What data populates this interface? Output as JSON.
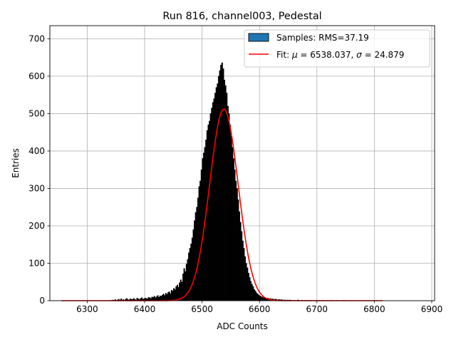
{
  "chart_data": {
    "type": "bar",
    "title": "Run 816, channel003, Pedestal",
    "xlabel": "ADC Counts",
    "ylabel": "Entries",
    "xlim": [
      6235,
      6905
    ],
    "ylim": [
      0,
      735
    ],
    "xticks": [
      6300,
      6400,
      6500,
      6600,
      6700,
      6800,
      6900
    ],
    "yticks": [
      0,
      100,
      200,
      300,
      400,
      500,
      600,
      700
    ],
    "grid": true,
    "legend_position": "upper right",
    "histogram": {
      "name": "Samples: RMS=37.19",
      "face_color": "#000000",
      "legend_patch_color": "#1f77b4",
      "bin_width": 2,
      "bin_starts": [
        6340,
        6342,
        6344,
        6346,
        6348,
        6350,
        6352,
        6354,
        6356,
        6358,
        6360,
        6362,
        6364,
        6366,
        6368,
        6370,
        6372,
        6374,
        6376,
        6378,
        6380,
        6382,
        6384,
        6386,
        6388,
        6390,
        6392,
        6394,
        6396,
        6398,
        6400,
        6402,
        6404,
        6406,
        6408,
        6410,
        6412,
        6414,
        6416,
        6418,
        6420,
        6422,
        6424,
        6426,
        6428,
        6430,
        6432,
        6434,
        6436,
        6438,
        6440,
        6442,
        6444,
        6446,
        6448,
        6450,
        6452,
        6454,
        6456,
        6458,
        6460,
        6462,
        6464,
        6466,
        6468,
        6470,
        6472,
        6474,
        6476,
        6478,
        6480,
        6482,
        6484,
        6486,
        6488,
        6490,
        6492,
        6494,
        6496,
        6498,
        6500,
        6502,
        6504,
        6506,
        6508,
        6510,
        6512,
        6514,
        6516,
        6518,
        6520,
        6522,
        6524,
        6526,
        6528,
        6530,
        6532,
        6534,
        6536,
        6538,
        6540,
        6542,
        6544,
        6546,
        6548,
        6550,
        6552,
        6554,
        6556,
        6558,
        6560,
        6562,
        6564,
        6566,
        6568,
        6570,
        6572,
        6574,
        6576,
        6578,
        6580,
        6582,
        6584,
        6586,
        6588,
        6590,
        6592,
        6594,
        6596,
        6598,
        6600,
        6602,
        6604,
        6606,
        6608,
        6610,
        6612,
        6614,
        6616,
        6618,
        6620,
        6622,
        6624,
        6626,
        6628,
        6630,
        6632,
        6634,
        6636,
        6638,
        6640,
        6642,
        6644,
        6646,
        6648,
        6650,
        6652,
        6654,
        6656,
        6658,
        6660,
        6662,
        6664,
        6666,
        6668,
        6670,
        6672,
        6674,
        6676,
        6678,
        6680,
        6682,
        6684,
        6686,
        6688,
        6690,
        6692,
        6694,
        6696,
        6698,
        6700,
        6702,
        6704,
        6706,
        6708,
        6710,
        6712,
        6714,
        6716,
        6718,
        6720,
        6722,
        6724,
        6726,
        6728,
        6730,
        6732,
        6734,
        6736,
        6738,
        6740,
        6742,
        6744,
        6746,
        6748,
        6750,
        6752,
        6754,
        6756,
        6758,
        6760,
        6762,
        6764,
        6766,
        6768,
        6770,
        6772,
        6774,
        6776,
        6778,
        6780,
        6782,
        6784,
        6786,
        6788,
        6790,
        6792,
        6794,
        6796,
        6798
      ],
      "counts": [
        1,
        0,
        2,
        1,
        3,
        0,
        2,
        4,
        1,
        5,
        2,
        3,
        1,
        4,
        6,
        3,
        2,
        5,
        4,
        3,
        6,
        4,
        2,
        7,
        5,
        3,
        6,
        8,
        4,
        5,
        7,
        6,
        5,
        9,
        8,
        6,
        10,
        9,
        12,
        8,
        11,
        14,
        9,
        13,
        12,
        15,
        18,
        14,
        20,
        17,
        22,
        24,
        19,
        28,
        26,
        33,
        30,
        38,
        42,
        36,
        48,
        56,
        50,
        72,
        86,
        78,
        98,
        110,
        128,
        140,
        152,
        168,
        190,
        214,
        236,
        250,
        275,
        305,
        320,
        350,
        380,
        395,
        410,
        430,
        455,
        470,
        480,
        500,
        515,
        530,
        540,
        555,
        570,
        580,
        600,
        615,
        630,
        636,
        620,
        590,
        575,
        555,
        520,
        500,
        470,
        440,
        410,
        380,
        350,
        320,
        300,
        270,
        238,
        210,
        185,
        160,
        140,
        118,
        100,
        88,
        74,
        62,
        52,
        44,
        38,
        30,
        26,
        21,
        18,
        15,
        13,
        11,
        10,
        8,
        9,
        7,
        6,
        7,
        5,
        6,
        4,
        5,
        3,
        4,
        4,
        2,
        3,
        3,
        2,
        3,
        1,
        2,
        2,
        1,
        2,
        1,
        2,
        1,
        1,
        0,
        1,
        1,
        0,
        2,
        1,
        0,
        1,
        1,
        0,
        1,
        0,
        1,
        0,
        1,
        1,
        0,
        0,
        1,
        0,
        1,
        0,
        0,
        1,
        0,
        0,
        1,
        0,
        0,
        0,
        1,
        0,
        0,
        1,
        0,
        0,
        0,
        0,
        1,
        0,
        0,
        0,
        0,
        0,
        1,
        0,
        0,
        0,
        0,
        0,
        0,
        0,
        0,
        0,
        0,
        0,
        0,
        0,
        0,
        0,
        0,
        0,
        0,
        0,
        0,
        0,
        0,
        0,
        0,
        0
      ]
    },
    "fit": {
      "name": "Fit: μ = 6538.037, σ = 24.879",
      "color": "#ff0000",
      "mu": 6538.037,
      "sigma": 24.879,
      "amplitude": 512,
      "x_range": [
        6255,
        6815
      ]
    },
    "legend": {
      "samples_label": "Samples: RMS=37.19",
      "fit_label_prefix": "Fit: ",
      "fit_mu_symbol": "μ",
      "fit_mu_text": " = 6538.037, ",
      "fit_sigma_symbol": "σ",
      "fit_sigma_text": " = 24.879"
    }
  }
}
